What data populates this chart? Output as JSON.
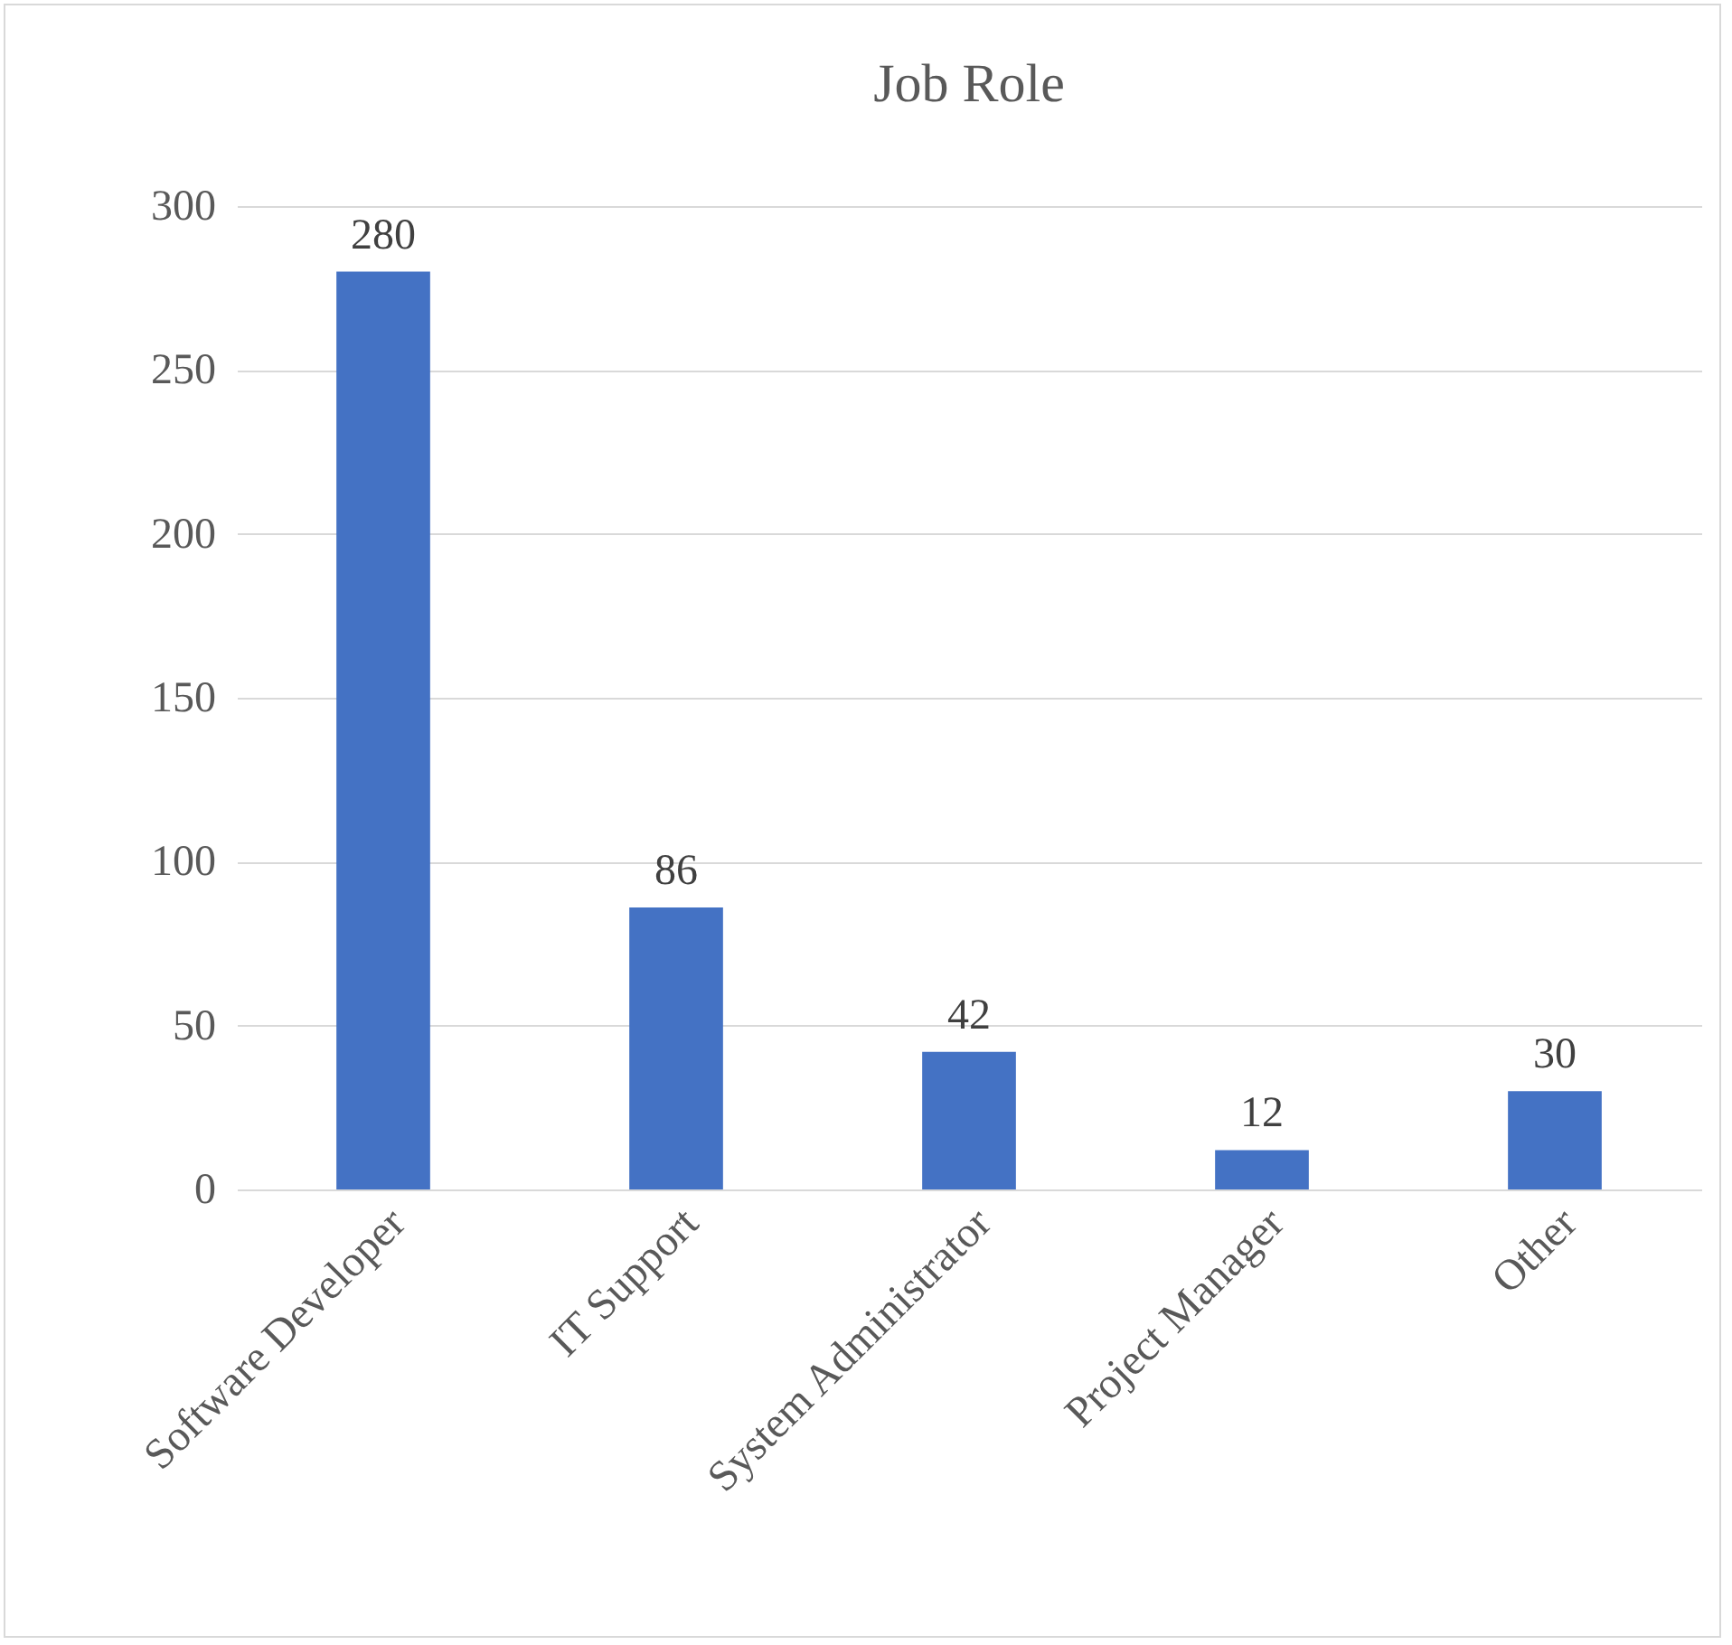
{
  "chart_data": {
    "type": "bar",
    "title": "Job Role",
    "categories": [
      "Software Developer",
      "IT Support",
      "System Administrator",
      "Project Manager",
      "Other"
    ],
    "values": [
      280,
      86,
      42,
      12,
      30
    ],
    "color": "#4472c4",
    "ylim": [
      0,
      300
    ],
    "yticks": [
      0,
      50,
      100,
      150,
      200,
      250,
      300
    ],
    "grid": "y",
    "data_labels": true
  }
}
